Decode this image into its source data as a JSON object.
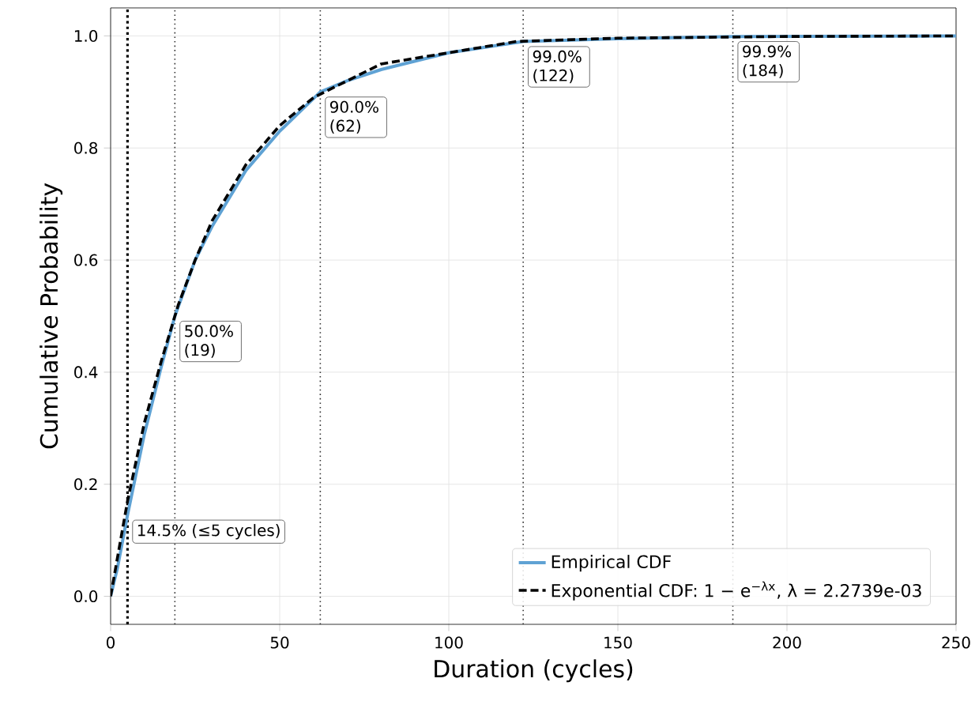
{
  "chart_data": {
    "type": "line",
    "xlabel": "Duration (cycles)",
    "ylabel": "Cumulative Probability",
    "xlim": [
      0,
      250
    ],
    "ylim": [
      -0.05,
      1.05
    ],
    "xticks": [
      0,
      50,
      100,
      150,
      200,
      250
    ],
    "yticks": [
      {
        "value": 0,
        "label": "0.0"
      },
      {
        "value": 0.2,
        "label": "0.2"
      },
      {
        "value": 0.4,
        "label": "0.4"
      },
      {
        "value": 0.6,
        "label": "0.6"
      },
      {
        "value": 0.8,
        "label": "0.8"
      },
      {
        "value": 1,
        "label": "1.0"
      }
    ],
    "grid": true,
    "legend": "bottom right",
    "marker": "none",
    "series": [
      {
        "name": "Empirical CDF",
        "color": "#5fa2d4",
        "line_style": "solid",
        "x": [
          0,
          2,
          5,
          10,
          15,
          19,
          25,
          30,
          40,
          50,
          62,
          70,
          80,
          100,
          122,
          150,
          184,
          250
        ],
        "values": [
          0,
          0.05,
          0.145,
          0.29,
          0.41,
          0.5,
          0.6,
          0.66,
          0.76,
          0.83,
          0.9,
          0.92,
          0.94,
          0.97,
          0.99,
          0.995,
          0.999,
          1.0
        ]
      },
      {
        "name": "Exponential CDF: 1 − e$^{−λx}$, λ = 2.2739e-03",
        "color": "#000000",
        "line_style": "dashed",
        "x": [
          0,
          5,
          10,
          15,
          20,
          25,
          30,
          40,
          50,
          60,
          70,
          80,
          100,
          120,
          150,
          200,
          250
        ],
        "values": [
          0,
          0.17,
          0.31,
          0.42,
          0.52,
          0.6,
          0.67,
          0.77,
          0.84,
          0.89,
          0.92,
          0.95,
          0.97,
          0.99,
          0.996,
          0.999,
          1.0
        ]
      }
    ],
    "ref_lines": [
      {
        "axis": "x",
        "value": 5,
        "color": "#000000",
        "line_style": "dotted"
      },
      {
        "axis": "x",
        "value": 19,
        "color": "#333333",
        "line_style": "dotted"
      },
      {
        "axis": "x",
        "value": 62,
        "color": "#333333",
        "line_style": "dotted"
      },
      {
        "axis": "x",
        "value": 122,
        "color": "#333333",
        "line_style": "dotted"
      },
      {
        "axis": "x",
        "value": 184,
        "color": "#333333",
        "line_style": "dotted"
      }
    ],
    "annotations": [
      {
        "text": "14.5% (≤5 cycles)",
        "x": 5,
        "y": 0.145
      },
      {
        "text": "50.0% (19)",
        "x": 19,
        "y": 0.5
      },
      {
        "text": "90.0% (62)",
        "x": 62,
        "y": 0.9
      },
      {
        "text": "99.0% (122)",
        "x": 122,
        "y": 0.99
      },
      {
        "text": "99.9% (184)",
        "x": 184,
        "y": 0.999
      }
    ]
  }
}
